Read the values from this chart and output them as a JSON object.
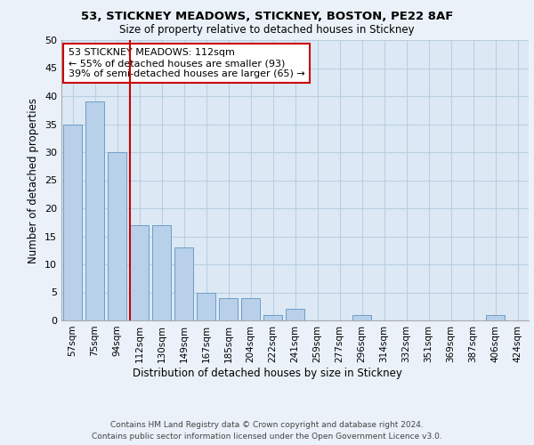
{
  "title_line1": "53, STICKNEY MEADOWS, STICKNEY, BOSTON, PE22 8AF",
  "title_line2": "Size of property relative to detached houses in Stickney",
  "xlabel": "Distribution of detached houses by size in Stickney",
  "ylabel": "Number of detached properties",
  "categories": [
    "57sqm",
    "75sqm",
    "94sqm",
    "112sqm",
    "130sqm",
    "149sqm",
    "167sqm",
    "185sqm",
    "204sqm",
    "222sqm",
    "241sqm",
    "259sqm",
    "277sqm",
    "296sqm",
    "314sqm",
    "332sqm",
    "351sqm",
    "369sqm",
    "387sqm",
    "406sqm",
    "424sqm"
  ],
  "values": [
    35,
    39,
    30,
    17,
    17,
    13,
    5,
    4,
    4,
    1,
    2,
    0,
    0,
    1,
    0,
    0,
    0,
    0,
    0,
    1,
    0
  ],
  "bar_color": "#b8d0ea",
  "bar_edge_color": "#6e9ec4",
  "red_line_index": 3,
  "annotation_text": "53 STICKNEY MEADOWS: 112sqm\n← 55% of detached houses are smaller (93)\n39% of semi-detached houses are larger (65) →",
  "annotation_box_color": "#ffffff",
  "annotation_box_edge_color": "#cc0000",
  "red_line_color": "#cc0000",
  "ylim": [
    0,
    50
  ],
  "yticks": [
    0,
    5,
    10,
    15,
    20,
    25,
    30,
    35,
    40,
    45,
    50
  ],
  "grid_color": "#b8cfe0",
  "background_color": "#eaf1f8",
  "plot_bg_color": "#dce9f5",
  "footer_line1": "Contains HM Land Registry data © Crown copyright and database right 2024.",
  "footer_line2": "Contains public sector information licensed under the Open Government Licence v3.0."
}
